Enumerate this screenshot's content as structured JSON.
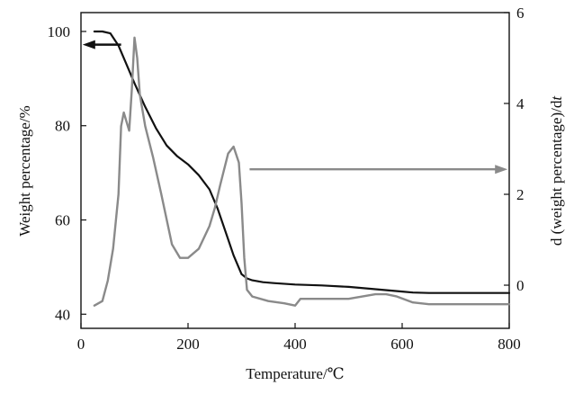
{
  "chart_data": {
    "type": "line",
    "xlabel": "Temperature/℃",
    "ylabel_left": "Weight percentage/%",
    "ylabel_right_prefix": "d (weight percentage)/d",
    "ylabel_right_italic": "t",
    "xlim": [
      0,
      800
    ],
    "ylim_left": [
      37,
      104
    ],
    "ylim_right": [
      -0.95,
      6.0
    ],
    "x_ticks": [
      0,
      200,
      400,
      600,
      800
    ],
    "y_left_ticks": [
      40,
      60,
      80,
      100
    ],
    "y_right_ticks": [
      0,
      2,
      4,
      6
    ],
    "grid": false,
    "series": [
      {
        "axis": "left",
        "color": "#111111",
        "x": [
          25,
          40,
          55,
          70,
          85,
          100,
          120,
          140,
          160,
          180,
          200,
          220,
          240,
          255,
          270,
          285,
          300,
          310,
          320,
          340,
          360,
          400,
          450,
          500,
          550,
          600,
          620,
          650,
          700,
          750,
          800
        ],
        "y": [
          100,
          100,
          99.6,
          97,
          93,
          89,
          84,
          79.5,
          75.8,
          73.5,
          71.8,
          69.5,
          66.5,
          62.5,
          57.5,
          52.5,
          48.5,
          47.6,
          47.2,
          46.8,
          46.6,
          46.3,
          46.1,
          45.8,
          45.3,
          44.8,
          44.6,
          44.5,
          44.5,
          44.5,
          44.5
        ]
      },
      {
        "axis": "right",
        "color": "#8a8a8a",
        "x": [
          25,
          40,
          50,
          60,
          70,
          75,
          80,
          85,
          90,
          95,
          100,
          105,
          110,
          120,
          135,
          150,
          170,
          185,
          200,
          220,
          240,
          250,
          260,
          275,
          285,
          295,
          300,
          305,
          310,
          320,
          350,
          380,
          400,
          410,
          420,
          450,
          500,
          550,
          570,
          590,
          620,
          650,
          700,
          800
        ],
        "y": [
          -0.45,
          -0.35,
          0.1,
          0.8,
          2.0,
          3.5,
          3.8,
          3.6,
          3.4,
          4.3,
          5.45,
          5.0,
          4.2,
          3.5,
          2.8,
          2.0,
          0.9,
          0.6,
          0.6,
          0.8,
          1.3,
          1.7,
          2.2,
          2.9,
          3.05,
          2.7,
          1.8,
          0.6,
          -0.1,
          -0.25,
          -0.35,
          -0.4,
          -0.45,
          -0.3,
          -0.3,
          -0.3,
          -0.3,
          -0.2,
          -0.2,
          -0.25,
          -0.38,
          -0.42,
          -0.42,
          -0.42
        ]
      }
    ],
    "annotations": [
      {
        "type": "arrow",
        "direction": "left",
        "points_to": "left-axis",
        "color": "#111111",
        "x_from": 75,
        "x_to": 3,
        "y_left": 97.2
      },
      {
        "type": "arrow",
        "direction": "right",
        "points_to": "right-axis",
        "color": "#8a8a8a",
        "x_from": 315,
        "x_to": 797,
        "y_right": 2.55
      }
    ]
  }
}
